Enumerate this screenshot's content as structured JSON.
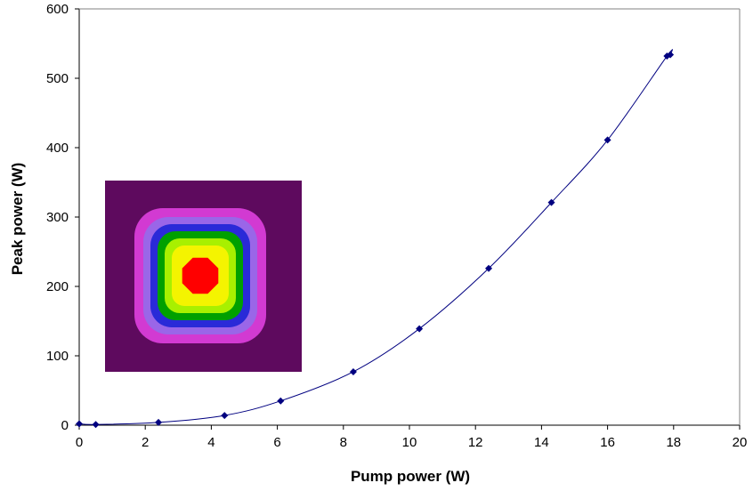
{
  "chart_data": {
    "type": "line",
    "title": "",
    "xlabel": "Pump power (W)",
    "ylabel": "Peak power (W)",
    "xlim": [
      0,
      20
    ],
    "ylim": [
      0,
      600
    ],
    "xticks": [
      0,
      2,
      4,
      6,
      8,
      10,
      12,
      14,
      16,
      18,
      20
    ],
    "yticks": [
      0,
      100,
      200,
      300,
      400,
      500,
      600
    ],
    "grid": false,
    "legend": "none",
    "series": [
      {
        "color": "#000080",
        "marker": "diamond",
        "x": [
          0,
          0.5,
          2.4,
          4.4,
          6.1,
          8.3,
          10.3,
          12.4,
          14.3,
          16.0,
          17.8,
          17.9
        ],
        "y": [
          2,
          1,
          4,
          14,
          35,
          77,
          139,
          226,
          321,
          411,
          532,
          534
        ]
      }
    ],
    "inset": {
      "description_colors": [
        "#5e0a5e",
        "#d23ad2",
        "#9a66e8",
        "#2a2ad8",
        "#00a000",
        "#a8f000",
        "#f4f400",
        "#ff0000"
      ]
    }
  }
}
